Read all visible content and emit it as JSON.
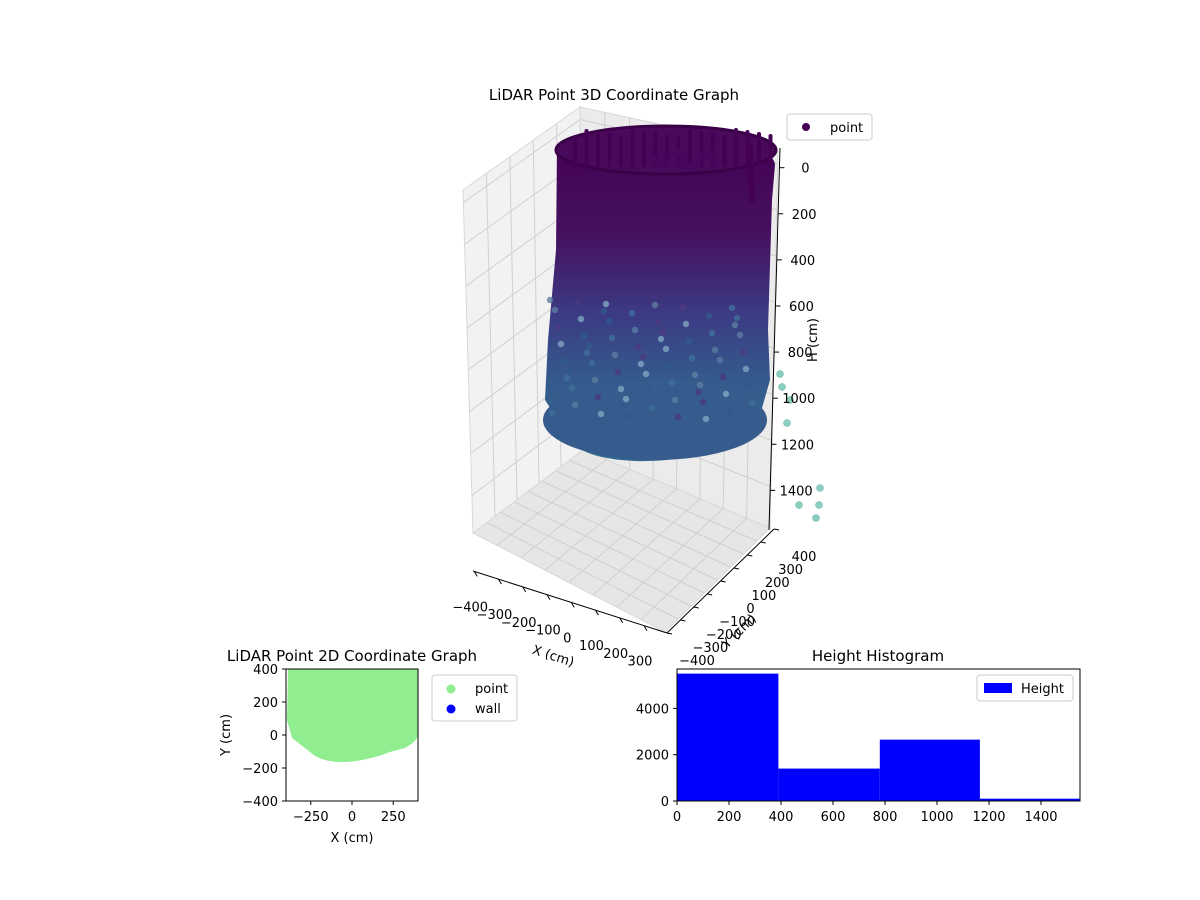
{
  "chart_data": [
    {
      "type": "scatter",
      "title": "LiDAR Point 3D Coordinate Graph",
      "xlabel": "X (cm)",
      "ylabel": "Y (cm)",
      "zlabel": "H (cm)",
      "x_ticks": [
        "−400",
        "−300",
        "−200",
        "−100",
        "0",
        "100",
        "200",
        "300"
      ],
      "y_ticks": [
        "−400",
        "−300",
        "−200",
        "−100",
        "0",
        "100",
        "200",
        "300",
        "400"
      ],
      "z_ticks": [
        "0",
        "200",
        "400",
        "600",
        "800",
        "1000",
        "1200",
        "1400"
      ],
      "xlim": [
        -400,
        400
      ],
      "ylim": [
        -400,
        400
      ],
      "zlim": [
        0,
        1500
      ],
      "z_inverted": true,
      "legend": {
        "position": "top-right",
        "entries": [
          {
            "label": "point",
            "color": "#440154"
          }
        ]
      },
      "colormap": "viridis",
      "stray_points_visible": true
    },
    {
      "type": "scatter",
      "title": "LiDAR Point 2D Coordinate Graph",
      "xlabel": "X (cm)",
      "ylabel": "Y (cm)",
      "x_ticks": [
        "−250",
        "0",
        "250"
      ],
      "y_ticks": [
        "−400",
        "−200",
        "0",
        "200",
        "400"
      ],
      "xlim": [
        -400,
        400
      ],
      "ylim": [
        -400,
        400
      ],
      "series": [
        {
          "name": "point",
          "color": "#90ee90"
        },
        {
          "name": "wall",
          "color": "#0000ff"
        }
      ],
      "legend": {
        "position": "outside-right"
      }
    },
    {
      "type": "bar",
      "title": "Height Histogram",
      "x_ticks": [
        "0",
        "200",
        "400",
        "600",
        "800",
        "1000",
        "1200",
        "1400"
      ],
      "y_ticks": [
        "0",
        "2000",
        "4000"
      ],
      "xlim": [
        0,
        1550
      ],
      "ylim": [
        0,
        5700
      ],
      "bins": [
        {
          "start": 0,
          "end": 390,
          "count": 5500
        },
        {
          "start": 390,
          "end": 780,
          "count": 1400
        },
        {
          "start": 780,
          "end": 1165,
          "count": 2650
        },
        {
          "start": 1165,
          "end": 1550,
          "count": 100
        }
      ],
      "series": [
        {
          "name": "Height",
          "color": "#0000ff"
        }
      ],
      "legend": {
        "position": "top-right"
      }
    }
  ]
}
